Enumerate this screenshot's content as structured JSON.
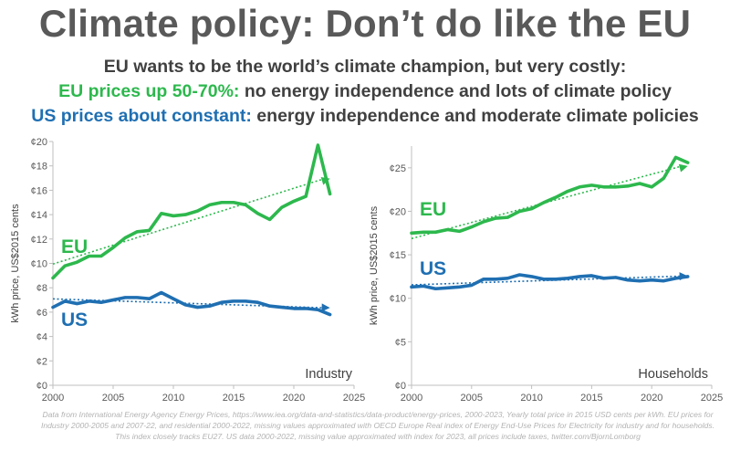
{
  "title": "Climate policy: Don’t do like the EU",
  "subtitle": {
    "line1": "EU wants to be the world’s climate champion, but very costly:",
    "line2_highlight": "EU prices up 50-70%:",
    "line2_rest": " no energy independence and lots of climate policy",
    "line3_highlight": "US prices about constant:",
    "line3_rest": " energy independence and moderate climate policies"
  },
  "colors": {
    "eu": "#2db84d",
    "us": "#1f6fb2",
    "axis": "#bfbfbf",
    "text": "#595959"
  },
  "footnote": "Data from International Energy Agency Energy Prices, https://www.iea.org/data-and-statistics/data-product/energy-prices, 2000-2023, Yearly total price in 2015 USD cents per kWh. EU prices for Industry 2000-2005 and 2007-22, and residential 2000-2022, missing values approximated with OECD Europe Real index of Energy End-Use Prices for Electricity for industry and for households. This index closely tracks EU27. US data 2000-2022, missing value approximated with index for 2023, all prices include taxes, twitter.com/BjornLomborg",
  "chart_data": [
    {
      "type": "line",
      "panel_label": "Industry",
      "ylabel": "kWh price, US$2015 cents",
      "xlim": [
        2000,
        2025
      ],
      "ylim": [
        0,
        20
      ],
      "x_ticks": [
        "2000",
        "2005",
        "2010",
        "2015",
        "2020",
        "2025"
      ],
      "y_ticks": [
        "¢0",
        "¢2",
        "¢4",
        "¢6",
        "¢8",
        "¢10",
        "¢12",
        "¢14",
        "¢16",
        "¢18",
        "¢20"
      ],
      "grid": false,
      "trendline": "dotted",
      "x": [
        2000,
        2001,
        2002,
        2003,
        2004,
        2005,
        2006,
        2007,
        2008,
        2009,
        2010,
        2011,
        2012,
        2013,
        2014,
        2015,
        2016,
        2017,
        2018,
        2019,
        2020,
        2021,
        2022,
        2023
      ],
      "series": [
        {
          "name": "EU",
          "values": [
            8.8,
            9.8,
            10.1,
            10.6,
            10.6,
            11.3,
            12.1,
            12.6,
            12.7,
            14.1,
            13.9,
            14.0,
            14.3,
            14.8,
            15.0,
            15.0,
            14.8,
            14.1,
            13.6,
            14.6,
            15.1,
            15.5,
            19.7,
            15.7
          ]
        },
        {
          "name": "US",
          "values": [
            6.4,
            6.9,
            6.7,
            6.9,
            6.8,
            7.0,
            7.2,
            7.2,
            7.1,
            7.6,
            7.1,
            6.6,
            6.4,
            6.5,
            6.8,
            6.9,
            6.9,
            6.8,
            6.5,
            6.4,
            6.3,
            6.3,
            6.2,
            5.8
          ]
        }
      ]
    },
    {
      "type": "line",
      "panel_label": "Households",
      "ylabel": "kWh price, US$2015 cents",
      "xlim": [
        2000,
        2025
      ],
      "ylim": [
        0,
        27.5
      ],
      "x_ticks": [
        "2000",
        "2005",
        "2010",
        "2015",
        "2020",
        "2025"
      ],
      "y_ticks": [
        "¢0",
        "¢5",
        "¢10",
        "¢15",
        "¢20",
        "¢25"
      ],
      "grid": false,
      "trendline": "dotted",
      "x": [
        2000,
        2001,
        2002,
        2003,
        2004,
        2005,
        2006,
        2007,
        2008,
        2009,
        2010,
        2011,
        2012,
        2013,
        2014,
        2015,
        2016,
        2017,
        2018,
        2019,
        2020,
        2021,
        2022,
        2023
      ],
      "series": [
        {
          "name": "EU",
          "values": [
            17.5,
            17.6,
            17.6,
            17.9,
            17.7,
            18.2,
            18.8,
            19.2,
            19.3,
            20.0,
            20.3,
            21.0,
            21.6,
            22.3,
            22.8,
            23.0,
            22.8,
            22.8,
            22.9,
            23.2,
            22.8,
            23.8,
            26.2,
            25.6
          ]
        },
        {
          "name": "US",
          "values": [
            11.3,
            11.4,
            11.1,
            11.2,
            11.3,
            11.5,
            12.2,
            12.2,
            12.3,
            12.7,
            12.5,
            12.2,
            12.2,
            12.3,
            12.5,
            12.6,
            12.3,
            12.4,
            12.1,
            12.0,
            12.1,
            12.0,
            12.3,
            12.5
          ]
        }
      ]
    }
  ]
}
